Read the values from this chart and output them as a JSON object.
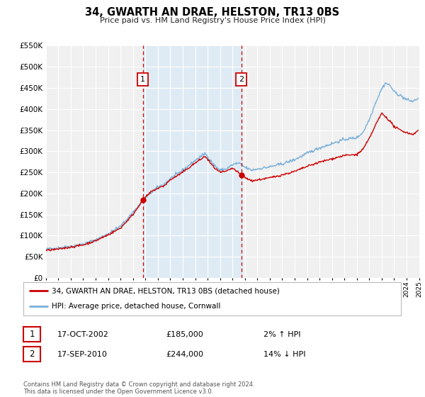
{
  "title": "34, GWARTH AN DRAE, HELSTON, TR13 0BS",
  "subtitle": "Price paid vs. HM Land Registry's House Price Index (HPI)",
  "legend_line1": "34, GWARTH AN DRAE, HELSTON, TR13 0BS (detached house)",
  "legend_line2": "HPI: Average price, detached house, Cornwall",
  "transaction1_date": "17-OCT-2002",
  "transaction1_price": 185000,
  "transaction1_hpi_note": "2% ↑ HPI",
  "transaction2_date": "17-SEP-2010",
  "transaction2_price": 244000,
  "transaction2_hpi_note": "14% ↓ HPI",
  "transaction1_x": 2002.79,
  "transaction2_x": 2010.71,
  "xmin": 1995,
  "xmax": 2025,
  "ymin": 0,
  "ymax": 550000,
  "yticks": [
    0,
    50000,
    100000,
    150000,
    200000,
    250000,
    300000,
    350000,
    400000,
    450000,
    500000,
    550000
  ],
  "background_color": "#ffffff",
  "plot_bg_color": "#f0f0f0",
  "grid_color": "#ffffff",
  "hpi_color": "#7ab0d9",
  "price_color": "#cc0000",
  "vline_color": "#cc0000",
  "shade_color": "#d8eaf7",
  "footnote": "Contains HM Land Registry data © Crown copyright and database right 2024.\nThis data is licensed under the Open Government Licence v3.0."
}
